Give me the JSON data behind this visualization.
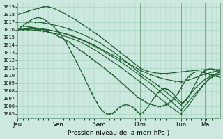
{
  "bg_color": "#cce8df",
  "grid_color": "#9ecfbf",
  "line_color": "#1a5c2a",
  "ylabel": "Pression niveau de la mer( hPa )",
  "ylim": [
    1004.5,
    1019.5
  ],
  "yticks": [
    1005,
    1006,
    1007,
    1008,
    1009,
    1010,
    1011,
    1012,
    1013,
    1014,
    1015,
    1016,
    1017,
    1018,
    1019
  ],
  "day_labels": [
    "Jeu",
    "Ven",
    "Sam",
    "Dim",
    "Lun",
    "Ma"
  ],
  "day_positions": [
    0,
    48,
    96,
    144,
    192,
    220
  ],
  "xlim": [
    0,
    238
  ],
  "lines": [
    {
      "x": [
        0,
        10,
        20,
        30,
        40,
        48,
        56,
        64,
        72,
        80,
        90,
        96,
        110,
        120,
        130,
        140,
        144,
        155,
        165,
        175,
        185,
        192,
        200,
        210,
        220,
        230,
        238
      ],
      "y": [
        1016.0,
        1016.1,
        1016.1,
        1016.0,
        1015.9,
        1015.7,
        1015.5,
        1015.2,
        1014.9,
        1014.5,
        1014.0,
        1013.6,
        1012.8,
        1012.2,
        1011.6,
        1011.0,
        1010.7,
        1010.2,
        1009.8,
        1009.5,
        1009.3,
        1009.2,
        1009.4,
        1009.8,
        1010.2,
        1010.5,
        1010.7
      ]
    },
    {
      "x": [
        0,
        6,
        12,
        18,
        24,
        30,
        36,
        42,
        48,
        54,
        60,
        68,
        76,
        84,
        92,
        96,
        104,
        112,
        120,
        128,
        136,
        144,
        152,
        160,
        168,
        176,
        184,
        192,
        200,
        210,
        220,
        230,
        238
      ],
      "y": [
        1018.0,
        1018.2,
        1018.4,
        1018.6,
        1018.8,
        1019.0,
        1019.0,
        1018.8,
        1018.5,
        1018.2,
        1017.8,
        1017.3,
        1016.7,
        1016.1,
        1015.5,
        1015.2,
        1014.5,
        1013.8,
        1013.1,
        1012.4,
        1011.7,
        1011.0,
        1010.6,
        1010.4,
        1010.3,
        1010.3,
        1010.4,
        1010.5,
        1010.6,
        1010.7,
        1010.8,
        1010.8,
        1010.8
      ]
    },
    {
      "x": [
        0,
        12,
        24,
        36,
        48,
        60,
        72,
        84,
        96,
        108,
        120,
        132,
        144,
        156,
        168,
        180,
        192,
        200,
        210,
        220,
        228,
        238
      ],
      "y": [
        1016.0,
        1016.0,
        1015.9,
        1015.7,
        1015.4,
        1015.0,
        1014.5,
        1013.8,
        1013.0,
        1012.1,
        1011.2,
        1010.2,
        1009.2,
        1008.1,
        1007.0,
        1005.9,
        1005.0,
        1006.0,
        1007.5,
        1009.0,
        1010.0,
        1010.5
      ]
    },
    {
      "x": [
        0,
        10,
        20,
        30,
        48,
        60,
        72,
        84,
        96,
        110,
        120,
        130,
        140,
        144,
        155,
        165,
        175,
        185,
        192,
        200,
        210,
        220,
        228,
        238
      ],
      "y": [
        1017.0,
        1017.0,
        1017.0,
        1016.9,
        1016.5,
        1016.1,
        1015.6,
        1015.0,
        1014.3,
        1013.3,
        1012.5,
        1011.6,
        1010.7,
        1010.3,
        1009.5,
        1008.7,
        1007.8,
        1006.9,
        1006.2,
        1007.2,
        1008.5,
        1009.5,
        1010.0,
        1010.3
      ]
    },
    {
      "x": [
        0,
        12,
        24,
        36,
        48,
        60,
        72,
        84,
        96,
        108,
        120,
        132,
        144,
        156,
        168,
        180,
        192,
        200,
        210,
        220,
        228,
        238
      ],
      "y": [
        1016.5,
        1016.4,
        1016.2,
        1016.0,
        1015.7,
        1015.3,
        1014.8,
        1014.2,
        1013.5,
        1012.7,
        1011.9,
        1011.0,
        1010.0,
        1009.0,
        1007.9,
        1006.7,
        1005.5,
        1006.5,
        1007.8,
        1009.0,
        1009.8,
        1010.2
      ]
    },
    {
      "x": [
        0,
        3,
        6,
        9,
        12,
        15,
        18,
        21,
        24,
        27,
        30,
        33,
        36,
        39,
        42,
        45,
        48,
        51,
        54,
        57,
        60,
        63,
        66,
        69,
        72,
        75,
        78,
        81,
        84,
        87,
        90,
        93,
        96,
        99,
        102,
        105,
        108,
        111,
        114,
        117,
        120,
        123,
        126,
        129,
        132,
        135,
        138,
        141,
        144,
        147,
        150,
        153,
        156,
        159,
        162,
        165,
        168,
        171,
        174,
        177,
        180,
        183,
        186,
        189,
        192,
        195,
        198,
        201,
        204,
        207,
        210,
        213,
        216,
        219,
        222,
        225,
        228,
        231,
        234,
        237
      ],
      "y": [
        1016.0,
        1016.1,
        1016.0,
        1016.2,
        1016.1,
        1016.3,
        1016.2,
        1016.1,
        1016.0,
        1015.9,
        1015.8,
        1015.9,
        1015.7,
        1015.6,
        1015.5,
        1015.3,
        1015.1,
        1015.0,
        1014.8,
        1014.6,
        1014.4,
        1014.2,
        1013.9,
        1013.7,
        1013.4,
        1013.2,
        1013.0,
        1012.7,
        1012.5,
        1012.2,
        1012.0,
        1011.7,
        1011.5,
        1011.2,
        1011.0,
        1010.7,
        1010.4,
        1010.2,
        1009.9,
        1009.6,
        1009.3,
        1009.0,
        1008.7,
        1008.4,
        1008.1,
        1007.8,
        1007.5,
        1007.2,
        1007.0,
        1006.8,
        1006.6,
        1006.4,
        1006.3,
        1006.2,
        1006.1,
        1006.0,
        1006.0,
        1006.1,
        1006.2,
        1006.4,
        1006.6,
        1006.9,
        1007.3,
        1007.8,
        1008.4,
        1009.0,
        1009.5,
        1009.9,
        1010.2,
        1010.4,
        1010.5,
        1010.5,
        1010.5,
        1010.4,
        1010.3,
        1010.2,
        1010.1,
        1010.0,
        1009.9,
        1009.8
      ]
    },
    {
      "x": [
        0,
        3,
        6,
        9,
        12,
        15,
        18,
        21,
        24,
        27,
        30,
        33,
        36,
        39,
        42,
        45,
        48,
        51,
        54,
        57,
        60,
        63,
        66,
        69,
        72,
        75,
        78,
        81,
        84,
        87,
        90,
        93,
        96,
        99,
        102,
        105,
        108,
        111,
        114,
        117,
        120,
        123,
        126,
        129,
        132,
        135,
        138,
        141,
        144,
        147,
        150,
        153,
        156,
        159,
        162,
        165,
        168,
        171,
        174,
        177,
        180,
        183,
        186,
        189,
        192,
        195,
        198,
        201,
        204,
        207,
        210,
        213,
        216,
        219,
        222,
        225,
        228,
        231,
        234,
        237
      ],
      "y": [
        1016.0,
        1016.3,
        1016.5,
        1016.8,
        1017.0,
        1017.2,
        1017.4,
        1017.5,
        1017.6,
        1017.5,
        1017.4,
        1017.2,
        1017.0,
        1016.7,
        1016.4,
        1016.1,
        1015.7,
        1015.3,
        1014.8,
        1014.3,
        1013.7,
        1013.1,
        1012.5,
        1011.8,
        1011.2,
        1010.5,
        1009.8,
        1009.1,
        1008.4,
        1007.7,
        1007.1,
        1006.5,
        1005.9,
        1005.5,
        1005.2,
        1005.0,
        1005.0,
        1005.1,
        1005.3,
        1005.6,
        1005.9,
        1006.1,
        1006.2,
        1006.2,
        1006.1,
        1005.9,
        1005.6,
        1005.3,
        1005.0,
        1005.2,
        1005.5,
        1005.9,
        1006.4,
        1006.9,
        1007.4,
        1007.8,
        1008.1,
        1008.3,
        1008.3,
        1008.2,
        1007.9,
        1007.6,
        1007.2,
        1006.8,
        1006.5,
        1006.5,
        1006.8,
        1007.3,
        1007.9,
        1008.5,
        1009.2,
        1009.8,
        1010.3,
        1010.6,
        1010.8,
        1010.9,
        1010.9,
        1010.8,
        1010.7,
        1010.6
      ]
    }
  ]
}
